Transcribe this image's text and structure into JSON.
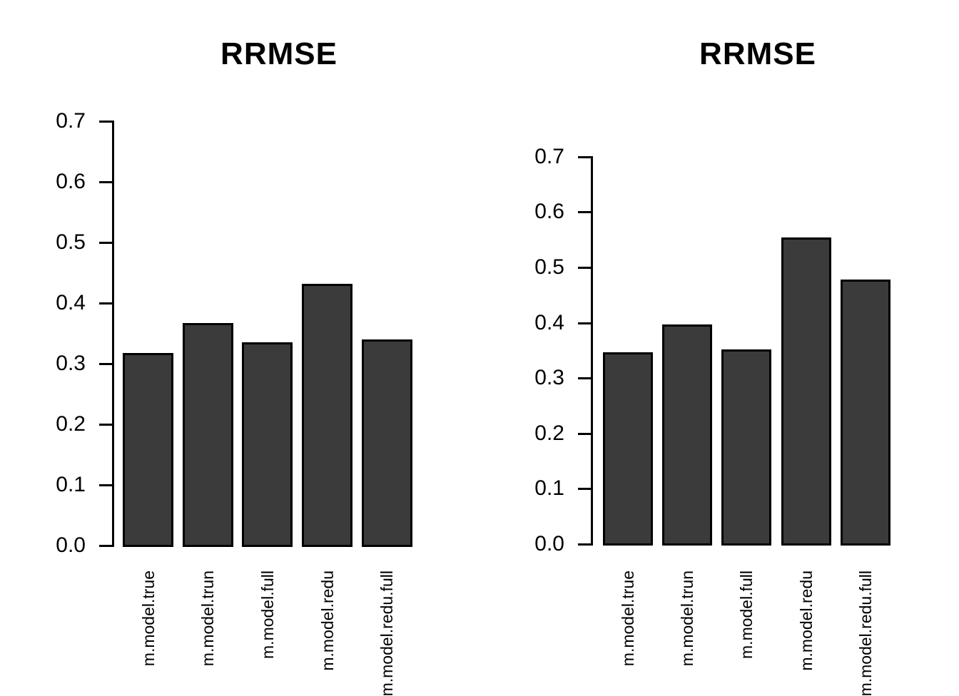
{
  "chart_data": [
    {
      "type": "bar",
      "title": "RRMSE",
      "categories": [
        "m.model.true",
        "m.model.trun",
        "m.model.full",
        "m.model.redu",
        "m.model.redu.full"
      ],
      "values": [
        0.316,
        0.366,
        0.334,
        0.431,
        0.339
      ],
      "xlabel": "",
      "ylabel": "",
      "ylim": [
        0.0,
        0.7
      ],
      "ytick_labels": [
        "0.0",
        "0.1",
        "0.2",
        "0.3",
        "0.4",
        "0.5",
        "0.6",
        "0.7"
      ],
      "grid": false,
      "legend": false,
      "bar_fill": "#3b3b3b",
      "bar_border": "#000000"
    },
    {
      "type": "bar",
      "title": "RRMSE",
      "categories": [
        "m.model.true",
        "m.model.trun",
        "m.model.full",
        "m.model.redu",
        "m.model.redu.full"
      ],
      "values": [
        0.346,
        0.396,
        0.35,
        0.553,
        0.477
      ],
      "xlabel": "",
      "ylabel": "",
      "ylim": [
        0.0,
        0.7
      ],
      "ytick_labels": [
        "0.0",
        "0.1",
        "0.2",
        "0.3",
        "0.4",
        "0.5",
        "0.6",
        "0.7"
      ],
      "grid": false,
      "legend": false,
      "bar_fill": "#3b3b3b",
      "bar_border": "#000000"
    }
  ]
}
